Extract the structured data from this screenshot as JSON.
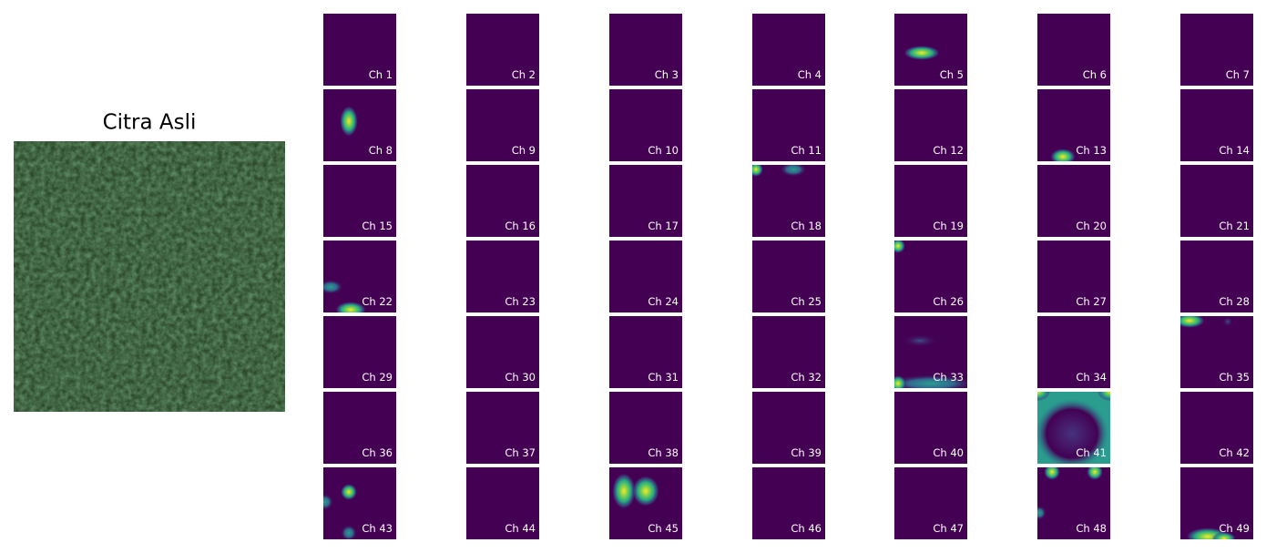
{
  "original": {
    "title": "Citra Asli"
  },
  "channels": [
    "Ch 1",
    "Ch 2",
    "Ch 3",
    "Ch 4",
    "Ch 5",
    "Ch 6",
    "Ch 7",
    "Ch 8",
    "Ch 9",
    "Ch 10",
    "Ch 11",
    "Ch 12",
    "Ch 13",
    "Ch 14",
    "Ch 15",
    "Ch 16",
    "Ch 17",
    "Ch 18",
    "Ch 19",
    "Ch 20",
    "Ch 21",
    "Ch 22",
    "Ch 23",
    "Ch 24",
    "Ch 25",
    "Ch 26",
    "Ch 27",
    "Ch 28",
    "Ch 29",
    "Ch 30",
    "Ch 31",
    "Ch 32",
    "Ch 33",
    "Ch 34",
    "Ch 35",
    "Ch 36",
    "Ch 37",
    "Ch 38",
    "Ch 39",
    "Ch 40",
    "Ch 41",
    "Ch 42",
    "Ch 43",
    "Ch 44",
    "Ch 45",
    "Ch 46",
    "Ch 47",
    "Ch 48",
    "Ch 49"
  ]
}
